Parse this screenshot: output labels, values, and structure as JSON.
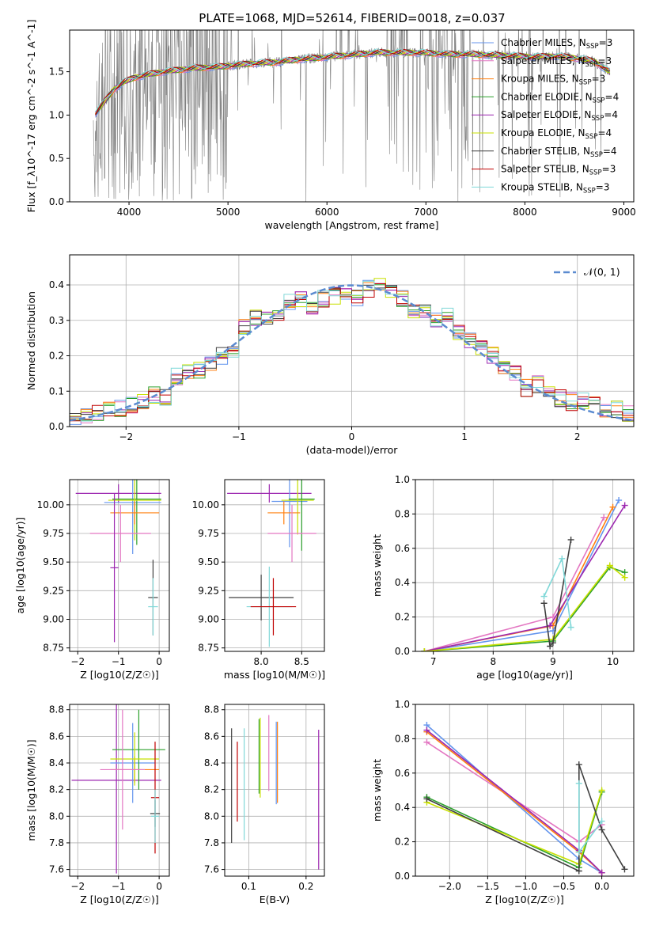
{
  "figure": {
    "title": "PLATE=1068, MJD=52614, FIBERID=0018, z=0.037"
  },
  "colors": {
    "data": "#808080",
    "models": [
      "#6495ed",
      "#e377c2",
      "#ff7f0e",
      "#2ca02c",
      "#9c27b0",
      "#c8e000",
      "#404040",
      "#c00000",
      "#80d8d8"
    ],
    "normal": "#5b8bd0",
    "grid": "#b0b0b0"
  },
  "chart_data": [
    {
      "id": "spectrum",
      "type": "line",
      "xlabel": "wavelength [Angstrom, rest frame]",
      "ylabel": "Flux [f_λ10^-17 erg cm^-2 s^-1 A^-1]",
      "xlim": [
        3400,
        9100
      ],
      "ylim": [
        0,
        1.98
      ],
      "xticks": [
        4000,
        5000,
        6000,
        7000,
        8000,
        9000
      ],
      "yticks": [
        0.0,
        0.5,
        1.0,
        1.5
      ],
      "grid": false,
      "legend_position": "right",
      "legend": [
        {
          "name": "Chabrier MILES",
          "n": "3"
        },
        {
          "name": "Salpeter MILES",
          "n": "3"
        },
        {
          "name": "Kroupa MILES",
          "n": "3"
        },
        {
          "name": "Chabrier ELODIE",
          "n": "4"
        },
        {
          "name": "Salpeter ELODIE",
          "n": "4"
        },
        {
          "name": "Kroupa ELODIE",
          "n": "4"
        },
        {
          "name": "Chabrier STELIB",
          "n": "4"
        },
        {
          "name": "Salpeter STELIB",
          "n": "3"
        },
        {
          "name": "Kroupa STELIB",
          "n": "3"
        }
      ],
      "model_continuum": {
        "x": [
          3650,
          3750,
          3850,
          3950,
          4050,
          4200,
          4350,
          4500,
          4650,
          4800,
          4950,
          5100,
          5300,
          5500,
          5700,
          5900,
          6100,
          6300,
          6500,
          6700,
          6900,
          7100,
          7300,
          7500,
          7700,
          7900,
          8100,
          8300,
          8500,
          8700,
          8850
        ],
        "y": [
          1.0,
          1.15,
          1.3,
          1.38,
          1.43,
          1.47,
          1.5,
          1.52,
          1.54,
          1.55,
          1.56,
          1.58,
          1.6,
          1.61,
          1.64,
          1.66,
          1.68,
          1.7,
          1.72,
          1.72,
          1.72,
          1.71,
          1.7,
          1.7,
          1.69,
          1.68,
          1.67,
          1.68,
          1.66,
          1.62,
          1.5
        ]
      }
    },
    {
      "id": "residuals",
      "type": "line",
      "xlabel": "(data-model)/error",
      "ylabel": "Normed distribution",
      "xlim": [
        -2.5,
        2.5
      ],
      "ylim": [
        0,
        0.485
      ],
      "xticks": [
        -2,
        -1,
        0,
        1,
        2
      ],
      "yticks": [
        0.0,
        0.1,
        0.2,
        0.3,
        0.4
      ],
      "grid": true,
      "legend_position": "top-right",
      "legend": [
        "𝒩(0, 1)"
      ],
      "hist_bins": [
        -2.5,
        -2.4,
        -2.3,
        -2.2,
        -2.1,
        -2.0,
        -1.9,
        -1.8,
        -1.7,
        -1.6,
        -1.5,
        -1.4,
        -1.3,
        -1.2,
        -1.1,
        -1.0,
        -0.9,
        -0.8,
        -0.7,
        -0.6,
        -0.5,
        -0.4,
        -0.3,
        -0.2,
        -0.1,
        0.0,
        0.1,
        0.2,
        0.3,
        0.4,
        0.5,
        0.6,
        0.7,
        0.8,
        0.9,
        1.0,
        1.1,
        1.2,
        1.3,
        1.4,
        1.5,
        1.6,
        1.7,
        1.8,
        1.9,
        2.0,
        2.1,
        2.2,
        2.3,
        2.4,
        2.5
      ],
      "hist_mean": [
        0.02,
        0.03,
        0.04,
        0.05,
        0.05,
        0.06,
        0.07,
        0.09,
        0.08,
        0.14,
        0.15,
        0.16,
        0.18,
        0.2,
        0.22,
        0.28,
        0.31,
        0.3,
        0.32,
        0.35,
        0.36,
        0.34,
        0.36,
        0.37,
        0.38,
        0.36,
        0.39,
        0.4,
        0.38,
        0.36,
        0.32,
        0.33,
        0.3,
        0.31,
        0.27,
        0.24,
        0.22,
        0.2,
        0.17,
        0.15,
        0.11,
        0.12,
        0.09,
        0.08,
        0.07,
        0.07,
        0.06,
        0.05,
        0.05,
        0.04
      ]
    },
    {
      "id": "age_vs_z",
      "type": "scatter",
      "xlabel": "Z [log10(Z/Z☉)]",
      "ylabel": "age [log10(age/yr)]",
      "xlim": [
        -2.2,
        0.25
      ],
      "ylim": [
        8.72,
        10.22
      ],
      "xticks": [
        -2,
        -1,
        0
      ],
      "yticks": [
        8.75,
        9.0,
        9.25,
        9.5,
        9.75,
        10.0
      ],
      "grid": true,
      "crosses": [
        {
          "c": 4,
          "x": -1.0,
          "xe": 1.05,
          "y": 10.1,
          "ye": 0.08
        },
        {
          "c": 0,
          "x": -0.65,
          "xe": 0.7,
          "y": 10.02,
          "ye": 0.45
        },
        {
          "c": 3,
          "x": -0.55,
          "xe": 0.6,
          "y": 10.05,
          "ye": 0.4
        },
        {
          "c": 5,
          "x": -0.6,
          "xe": 0.65,
          "y": 10.04,
          "ye": 0.35
        },
        {
          "c": 2,
          "x": -0.6,
          "xe": 0.6,
          "y": 9.93,
          "ye": 0.1
        },
        {
          "c": 1,
          "x": -0.95,
          "xe": 0.75,
          "y": 9.75,
          "ye": 0.25
        },
        {
          "c": 4,
          "x": -1.1,
          "xe": 0.1,
          "y": 9.45,
          "ye": 0.65
        },
        {
          "c": 6,
          "x": -0.15,
          "xe": 0.12,
          "y": 9.19,
          "ye": 0.33
        },
        {
          "c": 8,
          "x": -0.15,
          "xe": 0.12,
          "y": 9.11,
          "ye": 0.25
        }
      ]
    },
    {
      "id": "age_vs_mass",
      "type": "scatter",
      "xlabel": "mass [log10(M/M☉)]",
      "ylabel": "",
      "xlim": [
        7.55,
        8.78
      ],
      "ylim": [
        8.72,
        10.22
      ],
      "xticks": [
        8.0,
        8.5
      ],
      "yticks": [
        8.75,
        9.0,
        9.25,
        9.5,
        9.75,
        10.0
      ],
      "grid": true,
      "crosses": [
        {
          "c": 4,
          "x": 8.1,
          "xe": 0.52,
          "y": 10.1,
          "ye": 0.08
        },
        {
          "c": 0,
          "x": 8.35,
          "xe": 0.22,
          "y": 10.03,
          "ye": 0.4
        },
        {
          "c": 3,
          "x": 8.5,
          "xe": 0.16,
          "y": 10.05,
          "ye": 0.45
        },
        {
          "c": 5,
          "x": 8.45,
          "xe": 0.2,
          "y": 10.04,
          "ye": 0.3
        },
        {
          "c": 2,
          "x": 8.28,
          "xe": 0.2,
          "y": 9.93,
          "ye": 0.1
        },
        {
          "c": 1,
          "x": 8.38,
          "xe": 0.3,
          "y": 9.75,
          "ye": 0.25
        },
        {
          "c": 6,
          "x": 8.0,
          "xe": 0.4,
          "y": 9.19,
          "ye": 0.2
        },
        {
          "c": 8,
          "x": 8.1,
          "xe": 0.28,
          "y": 9.11,
          "ye": 0.35
        },
        {
          "c": 7,
          "x": 8.15,
          "xe": 0.28,
          "y": 9.11,
          "ye": 0.25
        }
      ]
    },
    {
      "id": "weight_vs_age",
      "type": "line",
      "xlabel": "age [log10(age/yr)]",
      "ylabel": "mass weight",
      "xlim": [
        6.7,
        10.35
      ],
      "ylim": [
        0,
        1.0
      ],
      "xticks": [
        7,
        8,
        9,
        10
      ],
      "yticks": [
        0.0,
        0.2,
        0.4,
        0.6,
        0.8,
        1.0
      ],
      "grid": true,
      "series": [
        {
          "c": 0,
          "x": [
            6.85,
            9.0,
            10.1
          ],
          "y": [
            0.0,
            0.12,
            0.88
          ]
        },
        {
          "c": 1,
          "x": [
            6.85,
            9.0,
            9.85
          ],
          "y": [
            0.0,
            0.2,
            0.78
          ]
        },
        {
          "c": 2,
          "x": [
            6.85,
            9.0,
            10.0
          ],
          "y": [
            0.0,
            0.15,
            0.84
          ]
        },
        {
          "c": 4,
          "x": [
            6.85,
            8.95,
            10.2
          ],
          "y": [
            0.0,
            0.15,
            0.85
          ]
        },
        {
          "c": 3,
          "x": [
            6.85,
            9.0,
            9.95,
            10.2
          ],
          "y": [
            0.0,
            0.06,
            0.49,
            0.46
          ]
        },
        {
          "c": 5,
          "x": [
            6.85,
            9.0,
            9.95,
            10.2
          ],
          "y": [
            0.0,
            0.07,
            0.5,
            0.43
          ]
        },
        {
          "c": 6,
          "x": [
            8.85,
            8.95,
            9.0,
            9.3
          ],
          "y": [
            0.28,
            0.03,
            0.05,
            0.65
          ]
        },
        {
          "c": 8,
          "x": [
            8.85,
            9.15,
            9.3
          ],
          "y": [
            0.32,
            0.54,
            0.14
          ]
        }
      ]
    },
    {
      "id": "mass_vs_z",
      "type": "scatter",
      "xlabel": "Z [log10(Z/Z☉)]",
      "ylabel": "mass [log10(M/M☉)]",
      "xlim": [
        -2.2,
        0.25
      ],
      "ylim": [
        7.55,
        8.84
      ],
      "xticks": [
        -2,
        -1,
        0
      ],
      "yticks": [
        7.6,
        7.8,
        8.0,
        8.2,
        8.4,
        8.6,
        8.8
      ],
      "grid": true,
      "crosses": [
        {
          "c": 4,
          "x": -1.05,
          "xe": 1.1,
          "y": 8.27,
          "ye": 0.7
        },
        {
          "c": 0,
          "x": -0.65,
          "xe": 0.55,
          "y": 8.4,
          "ye": 0.3
        },
        {
          "c": 2,
          "x": -0.6,
          "xe": 0.6,
          "y": 8.35,
          "ye": 0.1
        },
        {
          "c": 3,
          "x": -0.5,
          "xe": 0.65,
          "y": 8.5,
          "ye": 0.3
        },
        {
          "c": 5,
          "x": -0.6,
          "xe": 0.6,
          "y": 8.43,
          "ye": 0.2
        },
        {
          "c": 1,
          "x": -0.9,
          "xe": 0.55,
          "y": 8.35,
          "ye": 0.45
        },
        {
          "c": 7,
          "x": -0.1,
          "xe": 0.1,
          "y": 8.14,
          "ye": 0.42
        },
        {
          "c": 6,
          "x": -0.1,
          "xe": 0.12,
          "y": 8.02,
          "ye": 0.1
        },
        {
          "c": 8,
          "x": -0.1,
          "xe": 0.1,
          "y": 8.0,
          "ye": 0.2
        }
      ]
    },
    {
      "id": "mass_vs_ebv",
      "type": "scatter",
      "xlabel": "E(B-V)",
      "ylabel": "",
      "xlim": [
        0.058,
        0.232
      ],
      "ylim": [
        7.55,
        8.84
      ],
      "xticks": [
        0.1,
        0.2
      ],
      "yticks": [
        7.6,
        7.8,
        8.0,
        8.2,
        8.4,
        8.6,
        8.8
      ],
      "grid": true,
      "bars": [
        {
          "c": 6,
          "x": 0.07,
          "y0": 7.8,
          "y1": 8.66
        },
        {
          "c": 7,
          "x": 0.08,
          "y0": 7.96,
          "y1": 8.56
        },
        {
          "c": 8,
          "x": 0.092,
          "y0": 7.82,
          "y1": 8.66
        },
        {
          "c": 3,
          "x": 0.118,
          "y0": 8.17,
          "y1": 8.73
        },
        {
          "c": 5,
          "x": 0.12,
          "y0": 8.14,
          "y1": 8.74
        },
        {
          "c": 1,
          "x": 0.135,
          "y0": 8.19,
          "y1": 8.76
        },
        {
          "c": 0,
          "x": 0.148,
          "y0": 8.09,
          "y1": 8.71
        },
        {
          "c": 2,
          "x": 0.15,
          "y0": 8.1,
          "y1": 8.71
        },
        {
          "c": 4,
          "x": 0.222,
          "y0": 7.6,
          "y1": 8.65
        }
      ]
    },
    {
      "id": "weight_vs_z",
      "type": "line",
      "xlabel": "Z [log10(Z/Z☉)]",
      "ylabel": "mass weight",
      "xlim": [
        -2.45,
        0.42
      ],
      "ylim": [
        0,
        1.0
      ],
      "xticks": [
        -2.0,
        -1.5,
        -1.0,
        -0.5,
        0.0
      ],
      "yticks": [
        0.0,
        0.2,
        0.4,
        0.6,
        0.8,
        1.0
      ],
      "grid": true,
      "series": [
        {
          "c": 0,
          "x": [
            -2.3,
            -0.3,
            0.0
          ],
          "y": [
            0.88,
            0.1,
            0.02
          ]
        },
        {
          "c": 1,
          "x": [
            -2.3,
            -0.3,
            0.0
          ],
          "y": [
            0.78,
            0.2,
            0.3
          ]
        },
        {
          "c": 2,
          "x": [
            -2.3,
            -0.3,
            0.0
          ],
          "y": [
            0.84,
            0.14,
            0.02
          ]
        },
        {
          "c": 4,
          "x": [
            -2.3,
            -0.3,
            0.0
          ],
          "y": [
            0.85,
            0.15,
            0.02
          ]
        },
        {
          "c": 3,
          "x": [
            -2.3,
            -0.3,
            0.0
          ],
          "y": [
            0.46,
            0.05,
            0.49
          ]
        },
        {
          "c": 5,
          "x": [
            -2.3,
            -0.3,
            0.0
          ],
          "y": [
            0.43,
            0.07,
            0.5
          ]
        },
        {
          "c": 6,
          "x": [
            -2.3,
            -0.3,
            -0.3,
            0.0,
            0.3
          ],
          "y": [
            0.45,
            0.03,
            0.65,
            0.27,
            0.04
          ]
        },
        {
          "c": 8,
          "x": [
            -0.3,
            -0.3,
            0.0
          ],
          "y": [
            0.54,
            0.14,
            0.32
          ]
        }
      ]
    }
  ]
}
